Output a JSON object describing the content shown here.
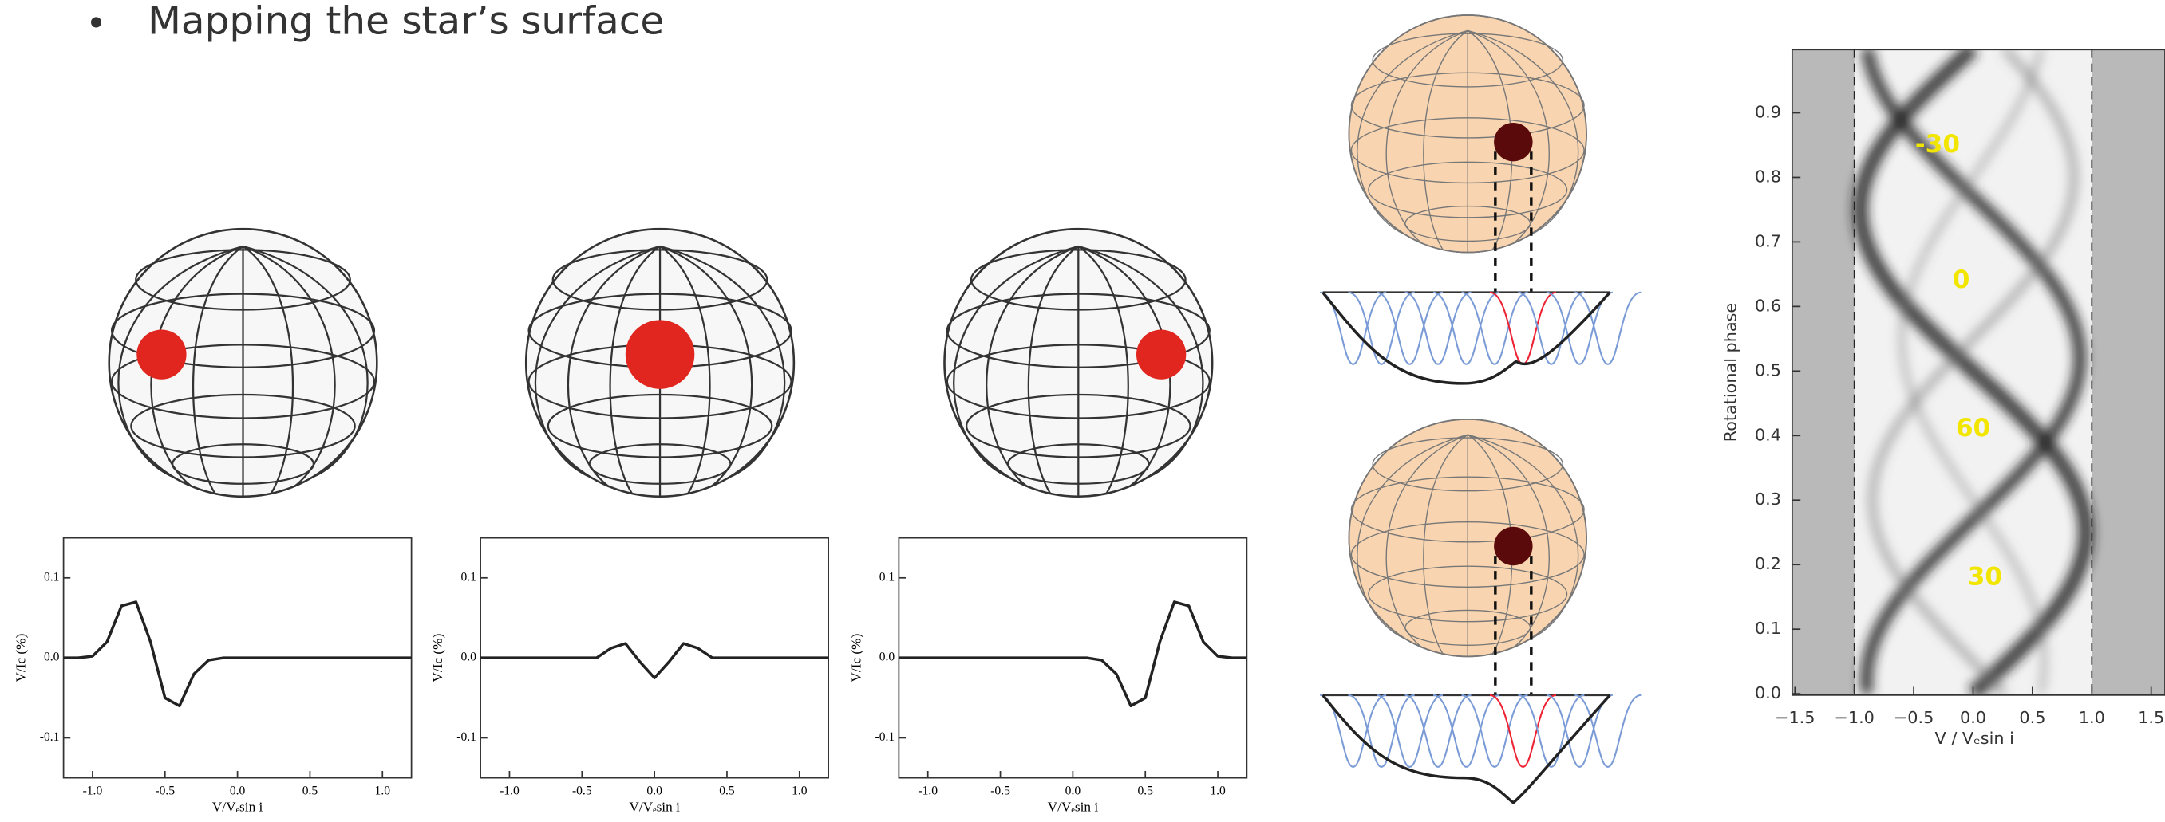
{
  "bullet": "Mapping the star’s surface",
  "chart_data": [
    {
      "type": "line",
      "xlabel": "V/Vₑsin i",
      "ylabel": "V/Ic (%)",
      "xlim": [
        -1.2,
        1.2
      ],
      "ylim": [
        -0.15,
        0.15
      ],
      "xticks": [
        {
          "value": -1,
          "label": "-1.0"
        },
        -0.5,
        {
          "value": 0,
          "label": "0.0"
        },
        0.5,
        {
          "value": 1,
          "label": "1.0"
        }
      ],
      "yticks": [
        -0.1,
        {
          "value": 0,
          "label": "0.0"
        },
        0.1
      ],
      "x": [
        -1.2,
        -1.1,
        -1.0,
        -0.9,
        -0.8,
        -0.7,
        -0.6,
        -0.5,
        -0.4,
        -0.3,
        -0.2,
        -0.1,
        0,
        0.1,
        0.2,
        0.3,
        0.4,
        0.5,
        0.6,
        0.7,
        0.8,
        0.9,
        1.0,
        1.1,
        1.2
      ],
      "values": [
        0,
        0,
        0.002,
        0.02,
        0.065,
        0.07,
        0.02,
        -0.05,
        -0.06,
        -0.02,
        -0.003,
        0,
        0,
        0,
        0,
        0,
        0,
        0,
        0,
        0,
        0,
        0,
        0,
        0,
        0
      ],
      "color": "#222222"
    },
    {
      "type": "line",
      "xlabel": "V/Vₑsin i",
      "ylabel": "V/Ic (%)",
      "xlim": [
        -1.2,
        1.2
      ],
      "ylim": [
        -0.15,
        0.15
      ],
      "xticks": [
        {
          "value": -1,
          "label": "-1.0"
        },
        -0.5,
        {
          "value": 0,
          "label": "0.0"
        },
        0.5,
        {
          "value": 1,
          "label": "1.0"
        }
      ],
      "yticks": [
        -0.1,
        {
          "value": 0,
          "label": "0.0"
        },
        0.1
      ],
      "x": [
        -1.2,
        -1.1,
        -1.0,
        -0.9,
        -0.8,
        -0.7,
        -0.6,
        -0.5,
        -0.4,
        -0.3,
        -0.2,
        -0.1,
        0,
        0.1,
        0.2,
        0.3,
        0.4,
        0.5,
        0.6,
        0.7,
        0.8,
        0.9,
        1.0,
        1.1,
        1.2
      ],
      "values": [
        0,
        0,
        0,
        0,
        0,
        0,
        0,
        0,
        0,
        0.012,
        0.018,
        -0.005,
        -0.025,
        -0.005,
        0.018,
        0.012,
        0,
        0,
        0,
        0,
        0,
        0,
        0,
        0,
        0
      ],
      "color": "#222222"
    },
    {
      "type": "line",
      "xlabel": "V/Vₑsin i",
      "ylabel": "V/Ic (%)",
      "xlim": [
        -1.2,
        1.2
      ],
      "ylim": [
        -0.15,
        0.15
      ],
      "xticks": [
        {
          "value": -1,
          "label": "-1.0"
        },
        -0.5,
        {
          "value": 0,
          "label": "0.0"
        },
        0.5,
        {
          "value": 1,
          "label": "1.0"
        }
      ],
      "yticks": [
        -0.1,
        {
          "value": 0,
          "label": "0.0"
        },
        0.1
      ],
      "x": [
        -1.2,
        -1.1,
        -1.0,
        -0.9,
        -0.8,
        -0.7,
        -0.6,
        -0.5,
        -0.4,
        -0.3,
        -0.2,
        -0.1,
        0,
        0.1,
        0.2,
        0.3,
        0.4,
        0.5,
        0.6,
        0.7,
        0.8,
        0.9,
        1.0,
        1.1,
        1.2
      ],
      "values": [
        0,
        0,
        0,
        0,
        0,
        0,
        0,
        0,
        0,
        0,
        0,
        0,
        0,
        0,
        -0.003,
        -0.02,
        -0.06,
        -0.05,
        0.02,
        0.07,
        0.065,
        0.02,
        0.002,
        0,
        0
      ],
      "color": "#222222"
    },
    {
      "type": "heatmap",
      "xlabel": "V / Vₑsin i",
      "ylabel": "Rotational phase",
      "xlim": [
        -1.5,
        1.5
      ],
      "ylim": [
        0,
        1
      ],
      "xticks": [
        {
          "value": -1.5,
          "label": "−1.5"
        },
        {
          "value": -1,
          "label": "−1.0"
        },
        {
          "value": -0.5,
          "label": "−0.5"
        },
        {
          "value": 0,
          "label": "0.0"
        },
        0.5,
        {
          "value": 1,
          "label": "1.0"
        },
        1.5
      ],
      "yticks": [
        {
          "value": 0,
          "label": "0.0"
        },
        0.1,
        0.2,
        0.3,
        0.4,
        0.5,
        0.6,
        0.7,
        0.8,
        0.9
      ],
      "annotations": [
        {
          "text": "-30",
          "x": -0.3,
          "y": 0.85
        },
        {
          "text": "0",
          "x": -0.1,
          "y": 0.64
        },
        {
          "text": "60",
          "x": 0.0,
          "y": 0.41
        },
        {
          "text": "30",
          "x": 0.1,
          "y": 0.18
        }
      ]
    }
  ]
}
